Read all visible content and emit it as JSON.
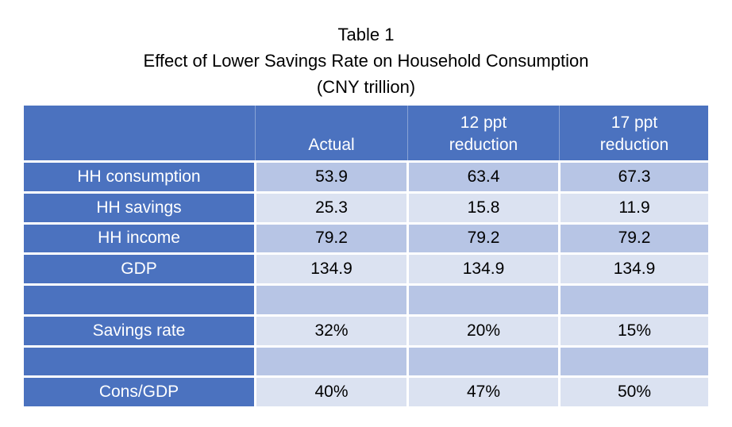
{
  "colors": {
    "header_blue": "#4B72BF",
    "band_dark": "#B7C5E5",
    "band_light": "#DBE2F1"
  },
  "chart_data": {
    "type": "table",
    "title": "Table 1",
    "subtitle": "Effect of Lower Savings Rate on Household Consumption",
    "units": "(CNY trillion)",
    "columns": [
      "",
      "Actual",
      "12 ppt\nreduction",
      "17 ppt\nreduction"
    ],
    "rows": [
      {
        "label": "HH consumption",
        "values": [
          "53.9",
          "63.4",
          "67.3"
        ]
      },
      {
        "label": "HH savings",
        "values": [
          "25.3",
          "15.8",
          "11.9"
        ]
      },
      {
        "label": "HH income",
        "values": [
          "79.2",
          "79.2",
          "79.2"
        ]
      },
      {
        "label": "GDP",
        "values": [
          "134.9",
          "134.9",
          "134.9"
        ]
      },
      {
        "label": "",
        "values": [
          "",
          "",
          ""
        ]
      },
      {
        "label": "Savings rate",
        "values": [
          "32%",
          "20%",
          "15%"
        ]
      },
      {
        "label": "",
        "values": [
          "",
          "",
          ""
        ]
      },
      {
        "label": "Cons/GDP",
        "values": [
          "40%",
          "47%",
          "50%"
        ]
      }
    ]
  }
}
